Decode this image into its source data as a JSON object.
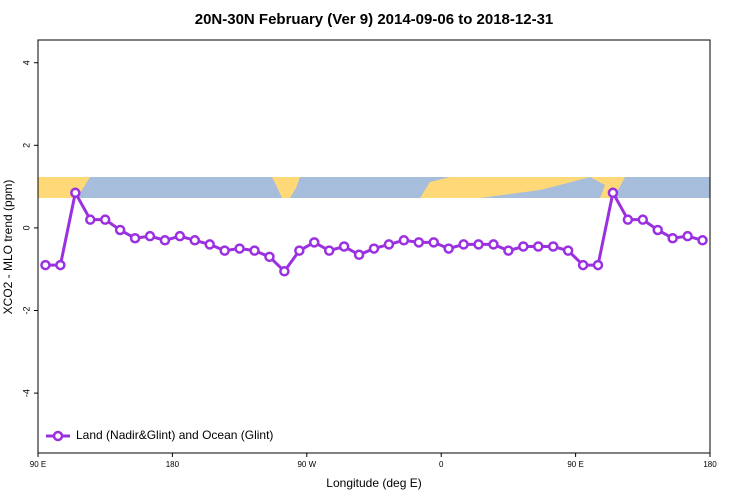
{
  "chart_data": {
    "type": "line",
    "title": "20N-30N February (Ver 9)   2014-09-06 to 2018-12-31",
    "x_label": "Longitude (deg E)",
    "y_label": "XCO2 - MLO trend (ppm)",
    "x": [
      95,
      105,
      115,
      125,
      135,
      145,
      155,
      165,
      175,
      185,
      195,
      205,
      215,
      225,
      235,
      245,
      255,
      265,
      275,
      285,
      295,
      305,
      315,
      325,
      335,
      345,
      355,
      365,
      375,
      385,
      395,
      405,
      415,
      425,
      435,
      445,
      455,
      465,
      475,
      485,
      495,
      505,
      515,
      525,
      535
    ],
    "series": [
      {
        "name": "Land (Nadir&Glint) and Ocean (Glint)",
        "color": "#9b30e0",
        "values": [
          -0.9,
          -0.9,
          0.85,
          0.2,
          0.2,
          -0.05,
          -0.25,
          -0.2,
          -0.3,
          -0.2,
          -0.3,
          -0.4,
          -0.55,
          -0.5,
          -0.55,
          -0.7,
          -1.05,
          -0.55,
          -0.35,
          -0.55,
          -0.45,
          -0.65,
          -0.5,
          -0.4,
          -0.3,
          -0.35,
          -0.35,
          -0.5,
          -0.4,
          -0.4,
          -0.4,
          -0.55,
          -0.45,
          -0.45,
          -0.45,
          -0.55,
          -0.9,
          -0.9,
          0.85,
          0.2,
          0.2,
          -0.05,
          -0.25,
          -0.2,
          -0.3
        ]
      }
    ],
    "xlim": [
      90,
      540
    ],
    "xticks": [
      {
        "value": 90,
        "label": "90 E"
      },
      {
        "value": 180,
        "label": "180"
      },
      {
        "value": 270,
        "label": "90 W"
      },
      {
        "value": 360,
        "label": "0"
      },
      {
        "value": 450,
        "label": "90 E"
      },
      {
        "value": 540,
        "label": "180"
      }
    ],
    "ylim": [
      -5.45,
      4.55
    ],
    "yticks": [
      -4,
      -2,
      0,
      2,
      4
    ],
    "legend": "bottom-left"
  }
}
